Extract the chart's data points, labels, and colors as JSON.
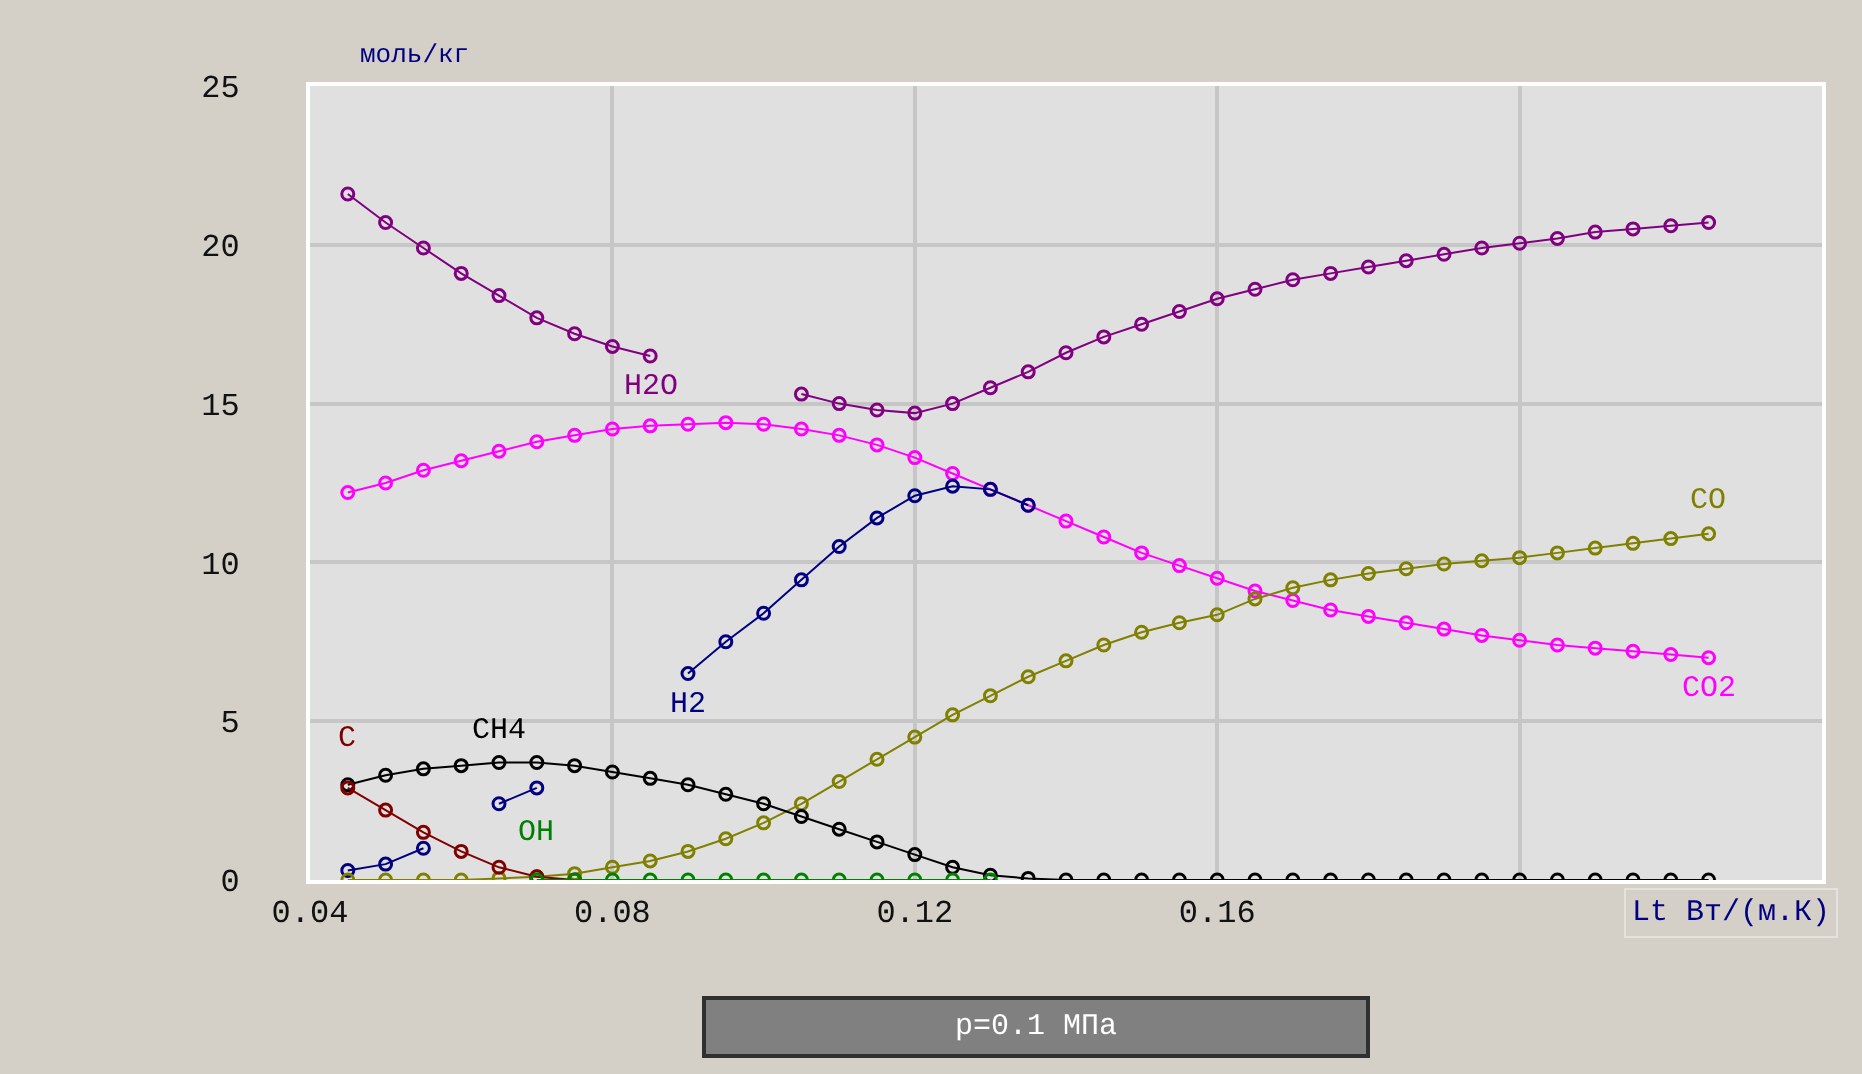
{
  "chart_data": {
    "type": "line",
    "xlabel": "Lt Вт/(м.К)",
    "ylabel": "моль/кг",
    "annotations": [
      "p=0.1 МПа"
    ],
    "x": [
      0.045,
      0.05,
      0.055,
      0.06,
      0.065,
      0.07,
      0.075,
      0.08,
      0.085,
      0.09,
      0.095,
      0.1,
      0.105,
      0.11,
      0.115,
      0.12,
      0.125,
      0.13,
      0.135,
      0.14,
      0.145,
      0.15,
      0.155,
      0.16,
      0.165,
      0.17,
      0.175,
      0.18,
      0.185,
      0.19,
      0.195,
      0.2,
      0.205,
      0.21,
      0.215,
      0.22,
      0.225
    ],
    "series": [
      {
        "name": "H2O",
        "color": "#800080",
        "values": [
          21.6,
          20.7,
          19.9,
          19.1,
          18.4,
          17.7,
          17.2,
          16.8,
          16.5,
          null,
          null,
          null,
          15.3,
          15.0,
          14.8,
          14.7,
          15.0,
          15.5,
          16.0,
          16.6,
          17.1,
          17.5,
          17.9,
          18.3,
          18.6,
          18.9,
          19.1,
          19.3,
          19.5,
          19.7,
          19.9,
          20.05,
          20.2,
          20.4,
          20.5,
          20.6,
          20.7
        ]
      },
      {
        "name": "CO2",
        "color": "#ff00ff",
        "values": [
          12.2,
          12.5,
          12.9,
          13.2,
          13.5,
          13.8,
          14.0,
          14.2,
          14.3,
          14.35,
          14.4,
          14.35,
          14.2,
          14.0,
          13.7,
          13.3,
          12.8,
          12.3,
          11.8,
          11.3,
          10.8,
          10.3,
          9.9,
          9.5,
          9.1,
          8.8,
          8.5,
          8.3,
          8.1,
          7.9,
          7.7,
          7.55,
          7.4,
          7.3,
          7.2,
          7.1,
          7.0
        ]
      },
      {
        "name": "H2",
        "color": "#000080",
        "values": [
          0.3,
          0.5,
          1.0,
          null,
          2.4,
          2.9,
          null,
          null,
          null,
          6.5,
          7.5,
          8.4,
          9.45,
          10.5,
          11.4,
          12.1,
          12.4,
          12.3,
          11.8,
          null,
          null,
          null,
          null,
          null,
          null,
          null,
          null,
          null,
          null,
          null,
          null,
          null,
          null,
          null,
          null,
          null,
          null
        ]
      },
      {
        "name": "CO",
        "color": "#808000",
        "values": [
          0,
          0,
          0,
          0,
          0.05,
          0.1,
          0.2,
          0.4,
          0.6,
          0.9,
          1.3,
          1.8,
          2.4,
          3.1,
          3.8,
          4.5,
          5.2,
          5.8,
          6.4,
          6.9,
          7.4,
          7.8,
          8.1,
          8.35,
          8.85,
          9.2,
          9.45,
          9.65,
          9.8,
          9.95,
          10.05,
          10.15,
          10.3,
          10.45,
          10.6,
          10.75,
          10.9
        ]
      },
      {
        "name": "CH4",
        "color": "#000000",
        "values": [
          3.0,
          3.3,
          3.5,
          3.6,
          3.7,
          3.7,
          3.6,
          3.4,
          3.2,
          3.0,
          2.7,
          2.4,
          2.0,
          1.6,
          1.2,
          0.8,
          0.4,
          0.15,
          0.05,
          0,
          0,
          0,
          0,
          0,
          0,
          0,
          0,
          0,
          0,
          0,
          0,
          0,
          0,
          0,
          0,
          0,
          0
        ]
      },
      {
        "name": "C",
        "color": "#800000",
        "values": [
          2.9,
          2.2,
          1.5,
          0.9,
          0.4,
          0.1,
          0,
          null,
          null,
          null,
          null,
          null,
          null,
          null,
          null,
          null,
          null,
          null,
          null,
          null,
          null,
          null,
          null,
          null,
          null,
          null,
          null,
          null,
          null,
          null,
          null,
          null,
          null,
          null,
          null,
          null,
          null
        ]
      },
      {
        "name": "OH",
        "color": "#008000",
        "values": [
          null,
          null,
          null,
          null,
          null,
          0,
          0,
          0,
          0,
          0,
          0,
          0,
          0,
          0,
          0,
          0,
          0,
          0,
          null,
          null,
          null,
          null,
          null,
          null,
          null,
          null,
          null,
          null,
          null,
          null,
          null,
          null,
          null,
          null,
          null,
          null,
          null
        ]
      }
    ],
    "xlim": [
      0.04,
      0.24
    ],
    "xticks": [
      0.04,
      0.08,
      0.12,
      0.16,
      {
        "value": 0.2,
        "label": null
      }
    ],
    "ylim": [
      0,
      25
    ],
    "yticks": [
      0,
      5,
      10,
      15,
      20,
      25
    ],
    "grid": true,
    "legend": false,
    "marker": "circle",
    "line_style": "solid"
  }
}
